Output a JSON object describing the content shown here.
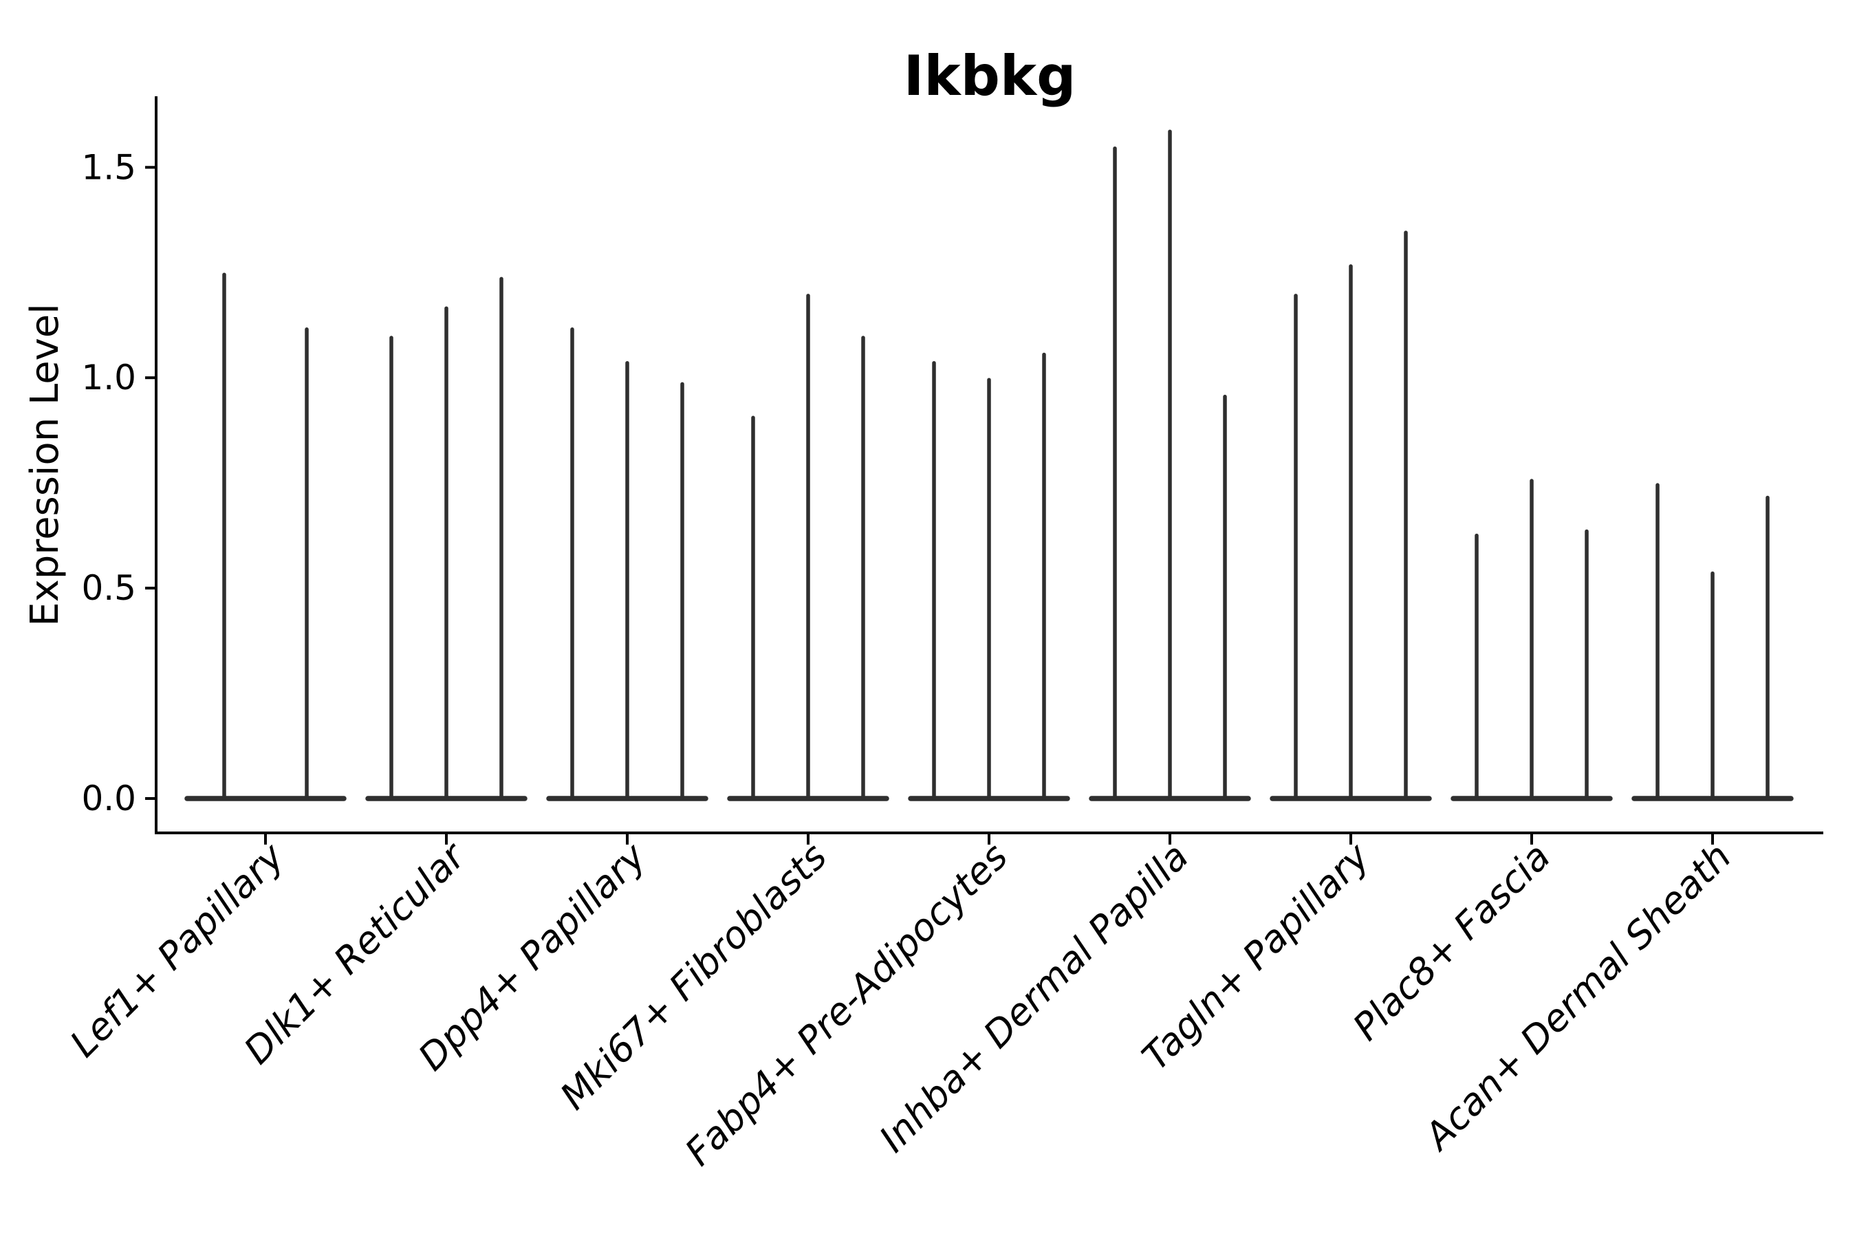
{
  "figure": {
    "background_color": "#ffffff",
    "text_color": "#000000",
    "axis_color": "#000000"
  },
  "chart_data": {
    "type": "violin",
    "title": "Ikbkg",
    "ylabel": "Expression Level",
    "xlabel": "",
    "grid": false,
    "legend_position": "none",
    "violin_color": "#2f2f2f",
    "ylim": [
      -0.08,
      1.67
    ],
    "yticks": [
      0.0,
      0.5,
      1.0,
      1.5
    ],
    "ytick_labels": [
      "0.0",
      "0.5",
      "1.0",
      "1.5"
    ],
    "x_tick_label_rotation_deg": 45,
    "categories": [
      "Lef1+ Papillary",
      "Dlk1+ Reticular",
      "Dpp4+ Papillary",
      "Mki67+ Fibroblasts",
      "Fabp4+ Pre-Adipocytes",
      "Inhba+ Dermal Papilla",
      "Tagln+ Papillary",
      "Plac8+ Fascia",
      "Acan+ Dermal Sheath"
    ],
    "series": [
      {
        "category": "Lef1+ Papillary",
        "violin_max_values": [
          1.25,
          1.12
        ],
        "violin_min_value": 0.0
      },
      {
        "category": "Dlk1+ Reticular",
        "violin_max_values": [
          1.1,
          1.17,
          1.24
        ],
        "violin_min_value": 0.0
      },
      {
        "category": "Dpp4+ Papillary",
        "violin_max_values": [
          1.12,
          1.04,
          0.99
        ],
        "violin_min_value": 0.0
      },
      {
        "category": "Mki67+ Fibroblasts",
        "violin_max_values": [
          0.91,
          1.2,
          1.1
        ],
        "violin_min_value": 0.0
      },
      {
        "category": "Fabp4+ Pre-Adipocytes",
        "violin_max_values": [
          1.04,
          1.0,
          1.06
        ],
        "violin_min_value": 0.0
      },
      {
        "category": "Inhba+ Dermal Papilla",
        "violin_max_values": [
          1.55,
          1.59,
          0.96
        ],
        "violin_min_value": 0.0
      },
      {
        "category": "Tagln+ Papillary",
        "violin_max_values": [
          1.2,
          1.27,
          1.35
        ],
        "violin_min_value": 0.0
      },
      {
        "category": "Plac8+ Fascia",
        "violin_max_values": [
          0.63,
          0.76,
          0.64
        ],
        "violin_min_value": 0.0
      },
      {
        "category": "Acan+ Dermal Sheath",
        "violin_max_values": [
          0.75,
          0.54,
          0.72
        ],
        "violin_min_value": 0.0
      }
    ]
  }
}
